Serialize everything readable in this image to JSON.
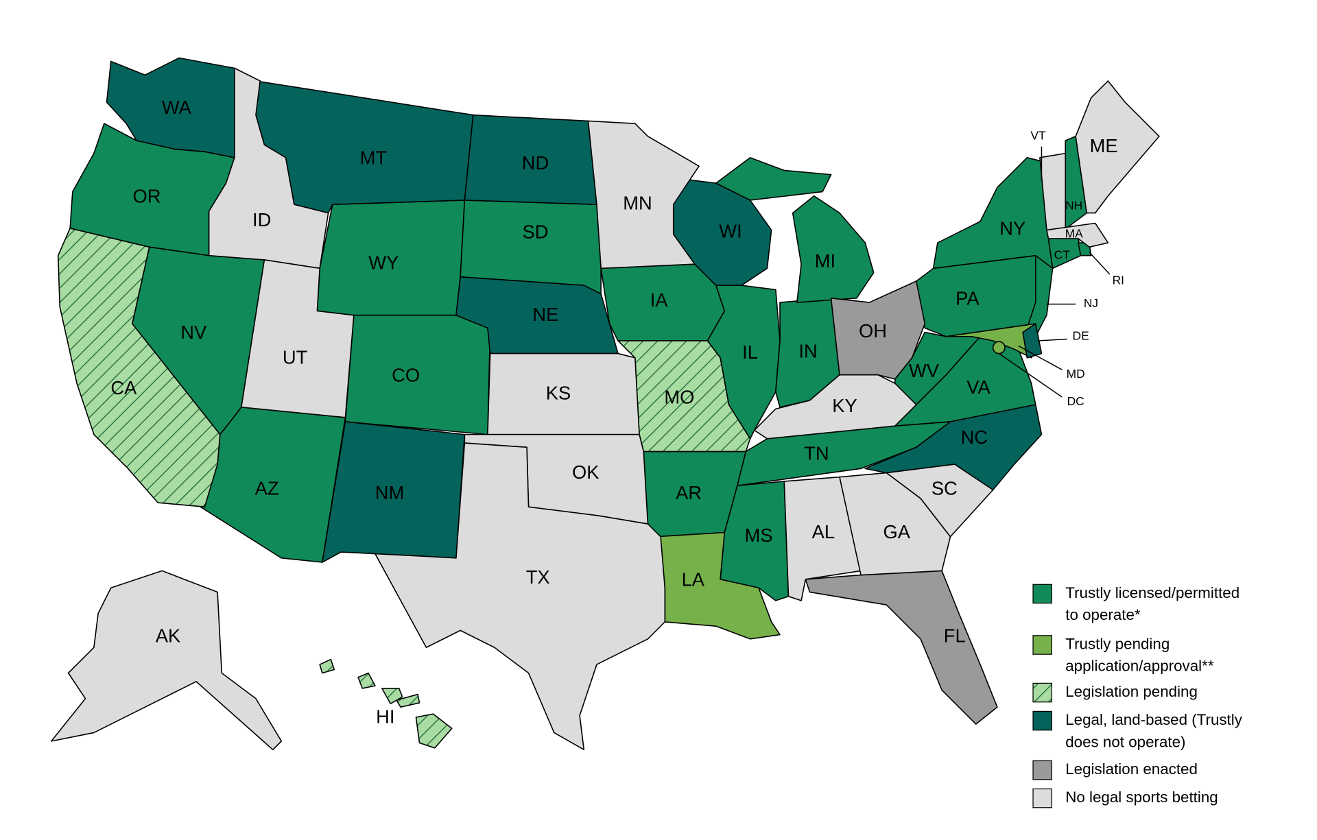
{
  "legend": [
    {
      "label_lines": [
        "Trustly licensed/permitted",
        "to operate*"
      ],
      "color": "#108a58",
      "hatched": false,
      "states": [
        "OR",
        "NV",
        "AZ",
        "WY",
        "CO",
        "SD",
        "IA",
        "IL",
        "IN",
        "MI",
        "AR",
        "MS",
        "TN",
        "WV",
        "VA",
        "PA",
        "NY",
        "NJ",
        "CT",
        "NH",
        "RI"
      ]
    },
    {
      "label_lines": [
        "Trustly pending",
        "application/approval**"
      ],
      "color": "#76b14a",
      "hatched": false,
      "states": [
        "LA",
        "MD",
        "DC"
      ]
    },
    {
      "label_lines": [
        "Legislation pending"
      ],
      "color": "#a9dca3",
      "hatched": true,
      "states": [
        "CA",
        "MO",
        "HI"
      ]
    },
    {
      "label_lines": [
        "Legal, land-based (Trustly",
        "does not operate)"
      ],
      "color": "#04645c",
      "hatched": false,
      "states": [
        "WA",
        "MT",
        "ND",
        "NE",
        "WI",
        "NM",
        "NC",
        "DE"
      ]
    },
    {
      "label_lines": [
        "Legislation enacted"
      ],
      "color": "#9a9a9a",
      "hatched": false,
      "states": [
        "OH",
        "FL"
      ]
    },
    {
      "label_lines": [
        "No legal sports betting"
      ],
      "color": "#dcdcdc",
      "hatched": false,
      "states": [
        "ID",
        "UT",
        "KS",
        "OK",
        "TX",
        "MN",
        "KY",
        "AL",
        "GA",
        "SC",
        "ME",
        "VT",
        "MA",
        "AK"
      ]
    }
  ]
}
